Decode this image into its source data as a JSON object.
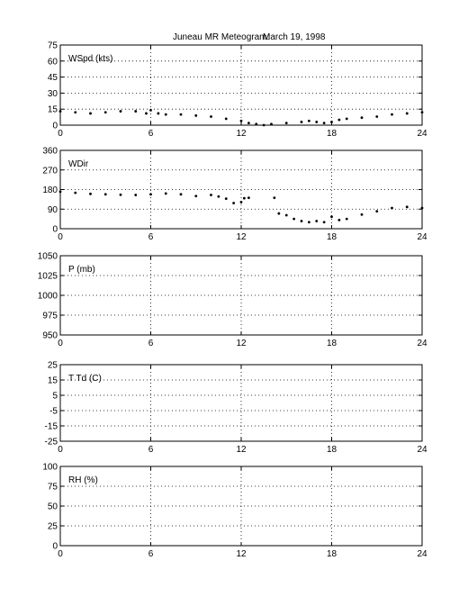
{
  "title": {
    "left": "Juneau MR Meteogram:",
    "right": "March 19, 1998"
  },
  "chart_data": [
    {
      "type": "scatter",
      "label": "WSpd (kts)",
      "xlim": [
        0,
        24
      ],
      "ylim": [
        0,
        75
      ],
      "xticks": [
        0,
        6,
        12,
        18,
        24
      ],
      "yticks": [
        0,
        15,
        30,
        45,
        60,
        75
      ],
      "grid": true,
      "series": [
        {
          "x": [
            0,
            1,
            2,
            3,
            4,
            5,
            5.7,
            6,
            6.5,
            7,
            8,
            9,
            10,
            11,
            12,
            12.5,
            13,
            13.5,
            14,
            15,
            16,
            16.5,
            17,
            17.5,
            18,
            18.5,
            19,
            20,
            21,
            22,
            23,
            24
          ],
          "values": [
            13,
            12,
            11,
            12,
            13,
            13,
            11,
            14,
            11,
            10,
            10,
            9,
            8,
            6,
            4,
            2,
            1,
            0,
            1,
            2,
            3,
            4,
            3,
            2,
            3,
            5,
            6,
            7,
            8,
            10,
            11,
            12
          ]
        }
      ]
    },
    {
      "type": "scatter",
      "label": "WDir",
      "xlim": [
        0,
        24
      ],
      "ylim": [
        0,
        360
      ],
      "xticks": [
        0,
        6,
        12,
        18,
        24
      ],
      "yticks": [
        0,
        90,
        180,
        270,
        360
      ],
      "grid": true,
      "series": [
        {
          "x": [
            0,
            1,
            2,
            3,
            4,
            5,
            6,
            7,
            8,
            9,
            10,
            10.5,
            11,
            11.5,
            12,
            12.2,
            12.5,
            14.2,
            14.5,
            15,
            15.5,
            16,
            16.5,
            17,
            17.5,
            18,
            18.5,
            19,
            20,
            21,
            22,
            23,
            24
          ],
          "values": [
            170,
            165,
            160,
            158,
            156,
            155,
            158,
            162,
            158,
            150,
            155,
            148,
            138,
            118,
            122,
            140,
            142,
            142,
            70,
            62,
            45,
            35,
            30,
            35,
            30,
            55,
            40,
            45,
            65,
            80,
            95,
            100,
            95
          ]
        }
      ]
    },
    {
      "type": "scatter",
      "label": "P (mb)",
      "xlim": [
        0,
        24
      ],
      "ylim": [
        950,
        1050
      ],
      "xticks": [
        0,
        6,
        12,
        18,
        24
      ],
      "yticks": [
        950,
        975,
        1000,
        1025,
        1050
      ],
      "grid": true,
      "series": []
    },
    {
      "type": "scatter",
      "label": "T Td (C)",
      "xlim": [
        0,
        24
      ],
      "ylim": [
        -25,
        25
      ],
      "xticks": [
        0,
        6,
        12,
        18,
        24
      ],
      "yticks": [
        -25,
        -15,
        -5,
        5,
        15,
        25
      ],
      "grid": true,
      "series": []
    },
    {
      "type": "scatter",
      "label": "RH (%)",
      "xlim": [
        0,
        24
      ],
      "ylim": [
        0,
        100
      ],
      "xticks": [
        0,
        6,
        12,
        18,
        24
      ],
      "yticks": [
        0,
        25,
        50,
        75,
        100
      ],
      "grid": true,
      "series": []
    }
  ]
}
